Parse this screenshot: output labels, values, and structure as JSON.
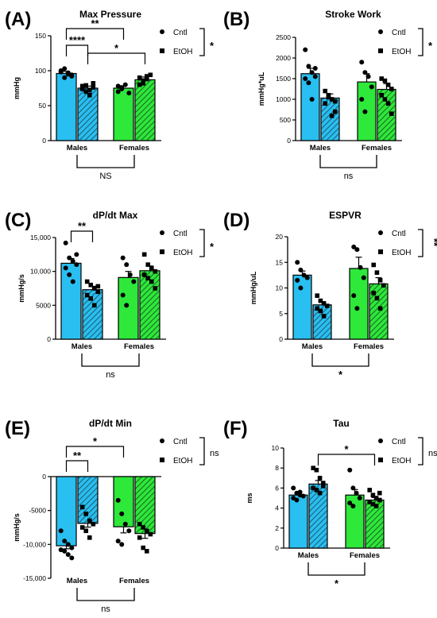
{
  "colors": {
    "male": "#29BFF0",
    "female": "#2EE83A",
    "hatch": "#1f5f78",
    "hatchF": "#1c6b25"
  },
  "legend": {
    "cntl": "Cntl",
    "etoh": "EtOH"
  },
  "chart_data": [
    {
      "type": "bar",
      "panel": "(A)",
      "title": "Max Pressure",
      "ylabel": "mmHg",
      "ylim": [
        0,
        150
      ],
      "yticks": [
        "0",
        "50",
        "100",
        "150"
      ],
      "yvals": [
        0,
        50,
        100,
        150
      ],
      "categories": [
        "Males",
        "Females"
      ],
      "series": [
        {
          "name": "Cntl",
          "values": [
            96,
            75
          ]
        },
        {
          "name": "EtOH",
          "values": [
            75,
            87
          ]
        }
      ],
      "points": [
        [
          98,
          103,
          95,
          92,
          100,
          90,
          97,
          94
        ],
        [
          78,
          70,
          65,
          82,
          74,
          79,
          72,
          76
        ],
        [
          70,
          76,
          80,
          68,
          78,
          74
        ],
        [
          90,
          82,
          88,
          94,
          80,
          86,
          92
        ]
      ],
      "errors": [
        3,
        3,
        3,
        4
      ],
      "legend_sig": "*",
      "bottom_sig": "NS",
      "brackets": [
        {
          "from": 0,
          "to": 2,
          "label": "**"
        },
        {
          "from": 0,
          "to": 1,
          "label": "****"
        },
        {
          "from": 1,
          "to": 3,
          "label": "*"
        }
      ]
    },
    {
      "type": "bar",
      "panel": "(B)",
      "title": "Stroke Work",
      "ylabel": "mmHg*uL",
      "ylim": [
        0,
        2500
      ],
      "yticks": [
        "0",
        "500",
        "1000",
        "1500",
        "2000",
        "2500"
      ],
      "yvals": [
        0,
        500,
        1000,
        1500,
        2000,
        2500
      ],
      "categories": [
        "Males",
        "Females"
      ],
      "series": [
        {
          "name": "Cntl",
          "values": [
            1620,
            1420
          ]
        },
        {
          "name": "EtOH",
          "values": [
            1030,
            1240
          ]
        }
      ],
      "points": [
        [
          2200,
          1800,
          1650,
          1550,
          1500,
          1400,
          1000,
          1750
        ],
        [
          1200,
          1100,
          1000,
          950,
          900,
          1050,
          600,
          700
        ],
        [
          1900,
          1650,
          1550,
          1300,
          1000,
          700
        ],
        [
          1500,
          1450,
          1350,
          1250,
          1100,
          1000,
          900,
          650
        ]
      ],
      "errors": [
        130,
        100,
        200,
        140
      ],
      "legend_sig": "*",
      "bottom_sig": "ns",
      "brackets": []
    },
    {
      "type": "bar",
      "panel": "(C)",
      "title": "dP/dt Max",
      "ylabel": "mmHg/s",
      "ylim": [
        0,
        15000
      ],
      "yticks": [
        "0",
        "5000",
        "10,000",
        "15,000"
      ],
      "yvals": [
        0,
        5000,
        10000,
        15000
      ],
      "categories": [
        "Males",
        "Females"
      ],
      "series": [
        {
          "name": "Cntl",
          "values": [
            11200,
            9100
          ]
        },
        {
          "name": "EtOH",
          "values": [
            7300,
            10100
          ]
        }
      ],
      "points": [
        [
          14200,
          12000,
          11500,
          11000,
          10500,
          9500,
          8500,
          12500
        ],
        [
          8500,
          8000,
          7500,
          7000,
          6500,
          6000,
          5000,
          7800
        ],
        [
          12000,
          11000,
          9500,
          8500,
          6500,
          5000
        ],
        [
          12500,
          11000,
          10500,
          10000,
          9500,
          9000,
          8500,
          7500
        ]
      ],
      "errors": [
        700,
        500,
        900,
        700
      ],
      "legend_sig": "*",
      "bottom_sig": "ns",
      "brackets": [
        {
          "from": 0,
          "to": 1,
          "label": "**"
        }
      ]
    },
    {
      "type": "bar",
      "panel": "(D)",
      "title": "ESPVR",
      "ylabel": "mmHg/uL",
      "ylim": [
        0,
        20
      ],
      "yticks": [
        "0",
        "5",
        "10",
        "15",
        "20"
      ],
      "yvals": [
        0,
        5,
        10,
        15,
        20
      ],
      "categories": [
        "Males",
        "Females"
      ],
      "series": [
        {
          "name": "Cntl",
          "values": [
            12.5,
            13.8
          ]
        },
        {
          "name": "EtOH",
          "values": [
            6.7,
            10.8
          ]
        }
      ],
      "points": [
        [
          15,
          13.5,
          12.5,
          12,
          11.5,
          10
        ],
        [
          8.5,
          7.5,
          7,
          6.5,
          6,
          5.5,
          4.5
        ],
        [
          18,
          17.5,
          14,
          12,
          8.5,
          6
        ],
        [
          14.5,
          13,
          11.5,
          10.5,
          9,
          8,
          6
        ]
      ],
      "errors": [
        0.8,
        0.5,
        2.2,
        1.2
      ],
      "legend_sig": "**",
      "bottom_sig": "*",
      "brackets": []
    },
    {
      "type": "bar",
      "panel": "(E)",
      "title": "dP/dt Min",
      "ylabel": "mmHg/s",
      "ylim": [
        -15000,
        0
      ],
      "yticks": [
        "-15,000",
        "-10,000",
        "-5000",
        "0"
      ],
      "yvals": [
        -15000,
        -10000,
        -5000,
        0
      ],
      "categories": [
        "Males",
        "Females"
      ],
      "series": [
        {
          "name": "Cntl",
          "values": [
            -10200,
            -7400
          ]
        },
        {
          "name": "EtOH",
          "values": [
            -6900,
            -8400
          ]
        }
      ],
      "points": [
        [
          -8000,
          -9500,
          -10000,
          -10500,
          -10800,
          -11000,
          -11500,
          -12000
        ],
        [
          -4500,
          -5500,
          -6500,
          -7000,
          -7500,
          -8000,
          -9000
        ],
        [
          -3500,
          -5500,
          -7000,
          -8000,
          -9500,
          -10000
        ],
        [
          -7000,
          -7500,
          -8000,
          -8500,
          -9000,
          -10500,
          -11000
        ]
      ],
      "errors": [
        450,
        550,
        900,
        700
      ],
      "legend_sig": "ns",
      "bottom_sig": "ns",
      "brackets": [
        {
          "from": 0,
          "to": 2,
          "label": "*"
        },
        {
          "from": 0,
          "to": 1,
          "label": "**"
        }
      ]
    },
    {
      "type": "bar",
      "panel": "(F)",
      "title": "Tau",
      "ylabel": "ms",
      "ylim": [
        0,
        10
      ],
      "yticks": [
        "0",
        "2",
        "4",
        "6",
        "8",
        "10"
      ],
      "yvals": [
        0,
        2,
        4,
        6,
        8,
        10
      ],
      "categories": [
        "Males",
        "Females"
      ],
      "series": [
        {
          "name": "Cntl",
          "values": [
            5.3,
            5.3
          ]
        },
        {
          "name": "EtOH",
          "values": [
            6.4,
            4.8
          ]
        }
      ],
      "points": [
        [
          6,
          5.5,
          5.3,
          5.2,
          5,
          4.8,
          5.6
        ],
        [
          8,
          7.8,
          7,
          6.5,
          6,
          5.8,
          5.5,
          6.2
        ],
        [
          7.8,
          6,
          5.5,
          5,
          4.5,
          4.2
        ],
        [
          5.8,
          5.3,
          5,
          4.8,
          4.6,
          4.4,
          4.2,
          5.5
        ]
      ],
      "errors": [
        0.2,
        0.35,
        0.55,
        0.25
      ],
      "legend_sig": "ns",
      "bottom_sig": "*",
      "brackets": [
        {
          "from": 1,
          "to": 3,
          "label": "*"
        }
      ]
    }
  ]
}
